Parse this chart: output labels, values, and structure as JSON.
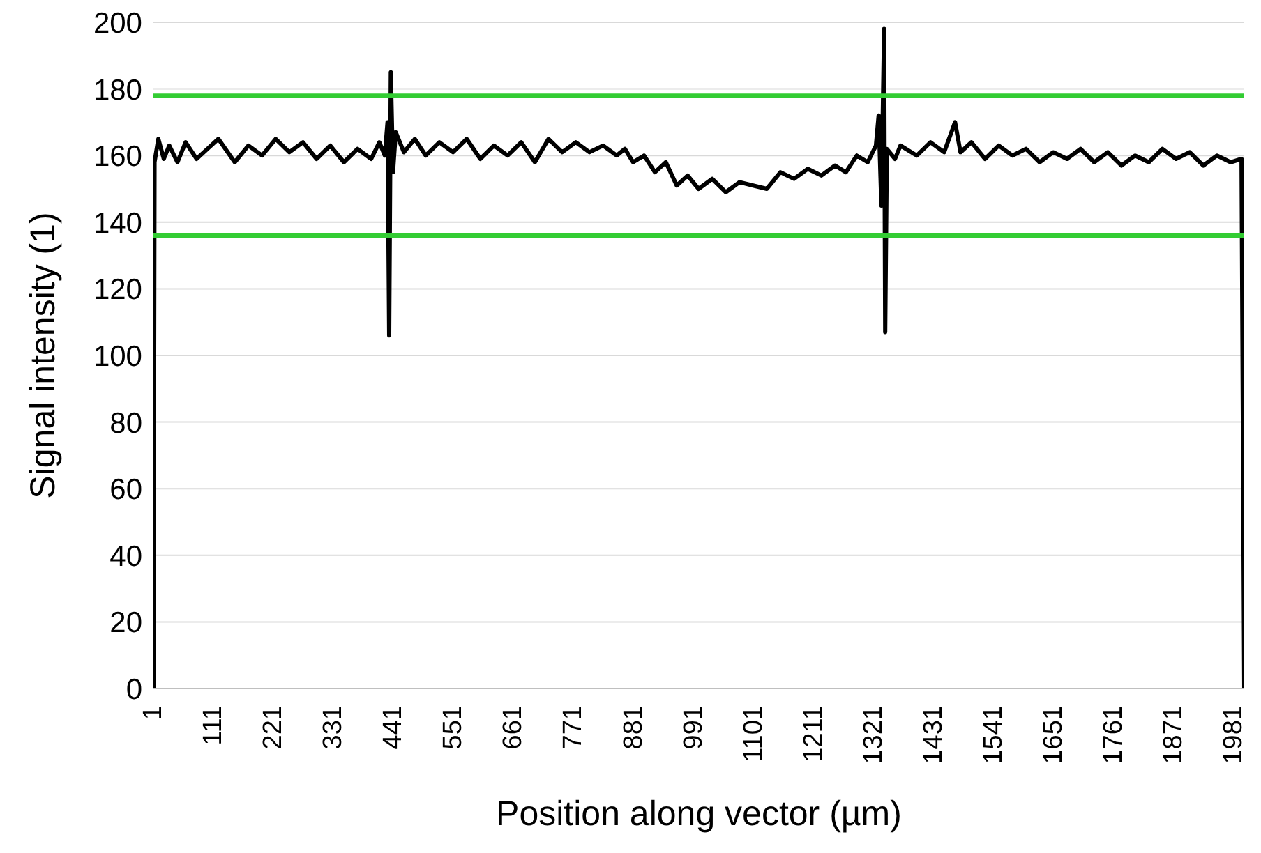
{
  "chart_data": {
    "type": "line",
    "xlabel": "Position along vector (µm)",
    "ylabel": "Signal intensity (1)",
    "series": [
      {
        "color": "#000000",
        "x": [
          1,
          3,
          10,
          20,
          30,
          45,
          60,
          80,
          100,
          120,
          150,
          175,
          200,
          225,
          250,
          275,
          300,
          325,
          350,
          375,
          400,
          415,
          425,
          430,
          433,
          436,
          440,
          445,
          460,
          480,
          500,
          525,
          550,
          575,
          600,
          625,
          650,
          675,
          700,
          725,
          750,
          775,
          800,
          825,
          850,
          865,
          880,
          900,
          920,
          940,
          960,
          980,
          1000,
          1025,
          1050,
          1075,
          1100,
          1125,
          1150,
          1175,
          1200,
          1225,
          1250,
          1270,
          1290,
          1310,
          1325,
          1330,
          1335,
          1340,
          1342,
          1345,
          1360,
          1370,
          1400,
          1425,
          1450,
          1470,
          1480,
          1500,
          1525,
          1550,
          1575,
          1600,
          1625,
          1650,
          1675,
          1700,
          1725,
          1750,
          1775,
          1800,
          1825,
          1850,
          1875,
          1900,
          1925,
          1950,
          1975,
          1995,
          2000
        ],
        "values": [
          0,
          158,
          165,
          159,
          163,
          158,
          164,
          159,
          162,
          165,
          158,
          163,
          160,
          165,
          161,
          164,
          159,
          163,
          158,
          162,
          159,
          164,
          160,
          170,
          106,
          185,
          155,
          167,
          161,
          165,
          160,
          164,
          161,
          165,
          159,
          163,
          160,
          164,
          158,
          165,
          161,
          164,
          161,
          163,
          160,
          162,
          158,
          160,
          155,
          158,
          151,
          154,
          150,
          153,
          149,
          152,
          151,
          150,
          155,
          153,
          156,
          154,
          157,
          155,
          160,
          158,
          163,
          172,
          145,
          198,
          107,
          162,
          159,
          163,
          160,
          164,
          161,
          170,
          161,
          164,
          159,
          163,
          160,
          162,
          158,
          161,
          159,
          162,
          158,
          161,
          157,
          160,
          158,
          162,
          159,
          161,
          157,
          160,
          158,
          159,
          0
        ]
      }
    ],
    "xlim": [
      1,
      2000
    ],
    "xticks": [
      1,
      111,
      221,
      331,
      441,
      551,
      661,
      771,
      881,
      991,
      1101,
      1211,
      1321,
      1431,
      1541,
      1651,
      1761,
      1871,
      1981
    ],
    "ylim": [
      0,
      200
    ],
    "yticks": [
      0,
      20,
      40,
      60,
      80,
      100,
      120,
      140,
      160,
      180,
      200
    ],
    "grid": "y",
    "ref_lines": [
      {
        "axis": "y",
        "value": 178,
        "color": "#33cc33"
      },
      {
        "axis": "y",
        "value": 136,
        "color": "#33cc33"
      }
    ]
  }
}
